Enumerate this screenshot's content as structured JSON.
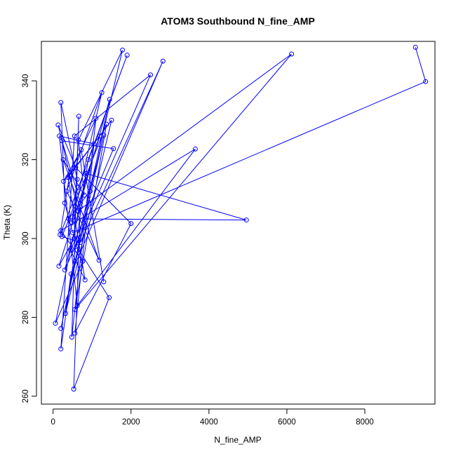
{
  "chart_data": {
    "type": "line",
    "title": "ATOM3 Southbound N_fine_AMP",
    "xlabel": "N_fine_AMP",
    "ylabel": "Theta (K)",
    "xlim": [
      -300,
      9800
    ],
    "ylim": [
      258,
      350
    ],
    "x_ticks": [
      0,
      2000,
      4000,
      6000,
      8000
    ],
    "y_ticks": [
      260,
      280,
      300,
      320,
      340
    ],
    "grid": false,
    "legend": "none",
    "markers": "open-circle",
    "color": "#0000ff",
    "series": [
      {
        "points": [
          [
            9300,
            348.5
          ],
          [
            9560,
            339.8
          ],
          [
            500,
            301.5
          ],
          [
            300,
            309
          ],
          [
            200,
            334.5
          ],
          [
            620,
            315
          ],
          [
            480,
            304
          ],
          [
            1250,
            337
          ],
          [
            350,
            312
          ],
          [
            1180,
            294.5
          ],
          [
            260,
            320
          ],
          [
            800,
            311
          ],
          [
            650,
            325
          ],
          [
            1780,
            347.8
          ],
          [
            600,
            298
          ],
          [
            1440,
            285
          ],
          [
            530,
            261.8
          ],
          [
            700,
            308
          ],
          [
            300,
            292
          ],
          [
            2500,
            341.5
          ],
          [
            550,
            326
          ],
          [
            200,
            272
          ],
          [
            900,
            320
          ],
          [
            1900,
            346.5
          ],
          [
            650,
            313
          ],
          [
            180,
            301
          ],
          [
            420,
            316
          ],
          [
            1500,
            330
          ],
          [
            320,
            281
          ],
          [
            460,
            291
          ],
          [
            2820,
            345
          ],
          [
            700,
            299
          ],
          [
            230,
            300.5
          ],
          [
            1370,
            329
          ],
          [
            560,
            282
          ],
          [
            6120,
            346.8
          ],
          [
            640,
            307
          ],
          [
            130,
            328.8
          ],
          [
            580,
            318
          ],
          [
            2000,
            303.8
          ],
          [
            560,
            276
          ],
          [
            1050,
            324
          ],
          [
            160,
            326
          ],
          [
            620,
            283
          ],
          [
            3650,
            322.7
          ],
          [
            200,
            302
          ],
          [
            760,
            294.2
          ],
          [
            60,
            278.5
          ],
          [
            850,
            316.5
          ],
          [
            4960,
            304.7
          ],
          [
            400,
            305
          ],
          [
            950,
            312
          ],
          [
            1300,
            326.2
          ],
          [
            200,
            277.2
          ],
          [
            1450,
            335.3
          ],
          [
            700,
            309
          ],
          [
            230,
            324.8
          ],
          [
            1550,
            322.8
          ],
          [
            450,
            297
          ],
          [
            820,
            289.5
          ],
          [
            380,
            315.5
          ],
          [
            1100,
            330.5
          ],
          [
            480,
            275
          ],
          [
            660,
            331
          ],
          [
            540,
            300
          ],
          [
            150,
            293
          ],
          [
            1200,
            326
          ],
          [
            270,
            314.5
          ],
          [
            720,
            322.5
          ],
          [
            1300,
            289
          ]
        ]
      }
    ]
  }
}
